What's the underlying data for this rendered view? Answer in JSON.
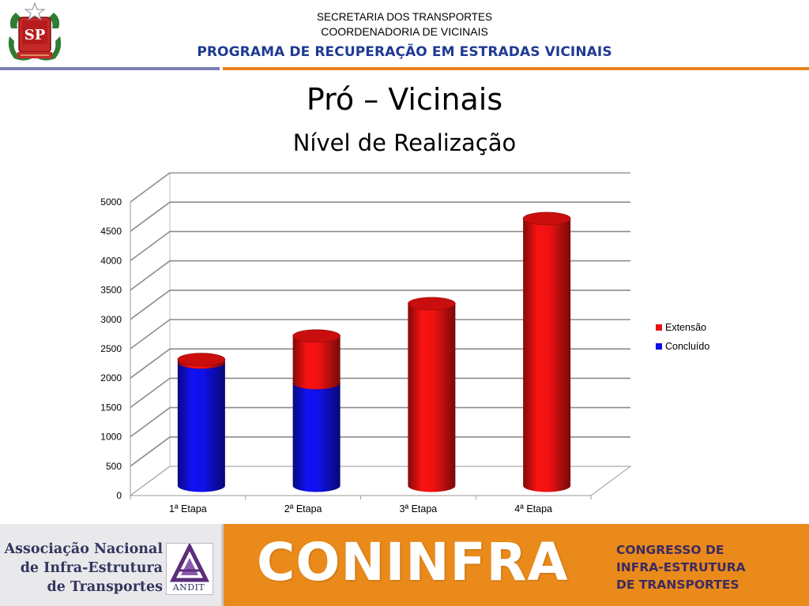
{
  "header": {
    "line1": "SECRETARIA DOS TRANSPORTES",
    "line2": "COORDENADORIA DE VICINAIS",
    "line3": "PROGRAMA DE RECUPERAÇÃO EM ESTRADAS VICINAIS",
    "seal_text": "SP"
  },
  "slide": {
    "title": "Pró – Vicinais",
    "subtitle": "Nível de Realização"
  },
  "chart_data": {
    "type": "bar",
    "stacked": true,
    "categories": [
      "1ª Etapa",
      "2ª Etapa",
      "3ª Etapa",
      "4ª Etapa"
    ],
    "series": [
      {
        "name": "Concluído",
        "values": [
          2100,
          1750,
          0,
          0
        ],
        "color": "#1010e8"
      },
      {
        "name": "Extensão",
        "values": [
          50,
          800,
          3100,
          4550
        ],
        "color": "#ee1111"
      }
    ],
    "y_ticks": [
      0,
      500,
      1000,
      1500,
      2000,
      2500,
      3000,
      3500,
      4000,
      4500,
      5000
    ],
    "ylim": [
      0,
      5000
    ],
    "grid": true,
    "legend_position": "right",
    "legend": [
      "Extensão",
      "Concluído"
    ]
  },
  "footer": {
    "assoc_lines": [
      "Associação Nacional",
      "de Infra-Estrutura",
      "de Transportes"
    ],
    "andit": "ANDIT",
    "coninfra": "CONINFRA",
    "congresso_lines": [
      "CONGRESSO DE",
      "INFRA-ESTRUTURA",
      "DE TRANSPORTES"
    ]
  }
}
